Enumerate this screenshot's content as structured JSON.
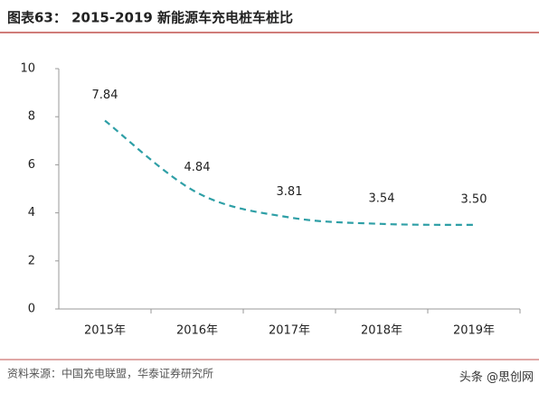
{
  "chart_data": {
    "type": "line",
    "title": "图表63： 2015-2019 新能源车充电桩车桩比",
    "categories": [
      "2015年",
      "2016年",
      "2017年",
      "2018年",
      "2019年"
    ],
    "series": [
      {
        "name": "车桩比",
        "color": "#2e9fa6",
        "values": [
          7.84,
          4.84,
          3.81,
          3.54,
          3.5
        ],
        "value_labels": [
          "7.84",
          "4.84",
          "3.81",
          "3.54",
          "3.50"
        ]
      }
    ],
    "ylim": [
      0,
      10
    ],
    "yticks": [
      0,
      2,
      4,
      6,
      8,
      10
    ],
    "grid": false,
    "source": "资料来源：中国充电联盟，华泰证券研究所",
    "watermark": "头条 @思创网"
  }
}
